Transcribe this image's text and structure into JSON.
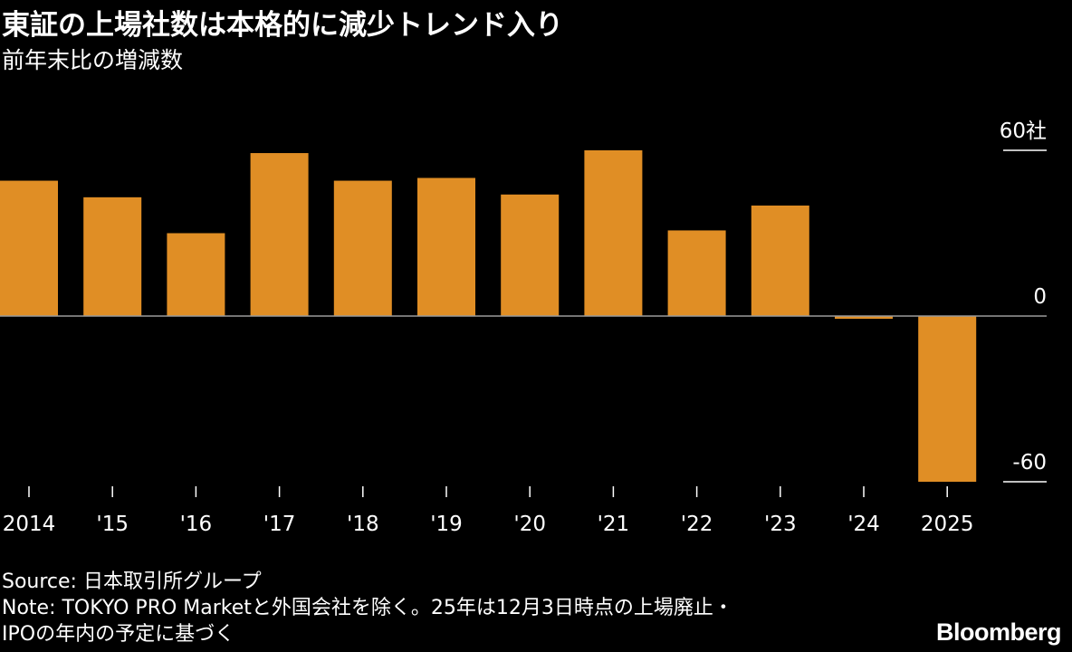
{
  "title": "東証の上場社数は本格的に減少トレンド入り",
  "subtitle": "前年末比の増減数",
  "chart_data": {
    "type": "bar",
    "categories": [
      "2014",
      "'15",
      "'16",
      "'17",
      "'18",
      "'19",
      "'20",
      "'21",
      "'22",
      "'23",
      "'24",
      "2025"
    ],
    "values": [
      49,
      43,
      30,
      59,
      49,
      50,
      44,
      60,
      31,
      40,
      -1,
      -60
    ],
    "ylim": [
      -60,
      60
    ],
    "yticks": [
      {
        "value": 60,
        "label": "60社"
      },
      {
        "value": 0,
        "label": "0"
      },
      {
        "value": -60,
        "label": "-60"
      }
    ],
    "xlabel": "",
    "ylabel": "",
    "bar_color": "#E08E25",
    "grid": false,
    "legend": "none"
  },
  "footer": {
    "source": "Source: 日本取引所グループ",
    "note_line1": "Note: TOKYO PRO Marketと外国会社を除く。25年は12月3日時点の上場廃止・",
    "note_line2": "IPOの年内の予定に基づく"
  },
  "brand": "Bloomberg"
}
